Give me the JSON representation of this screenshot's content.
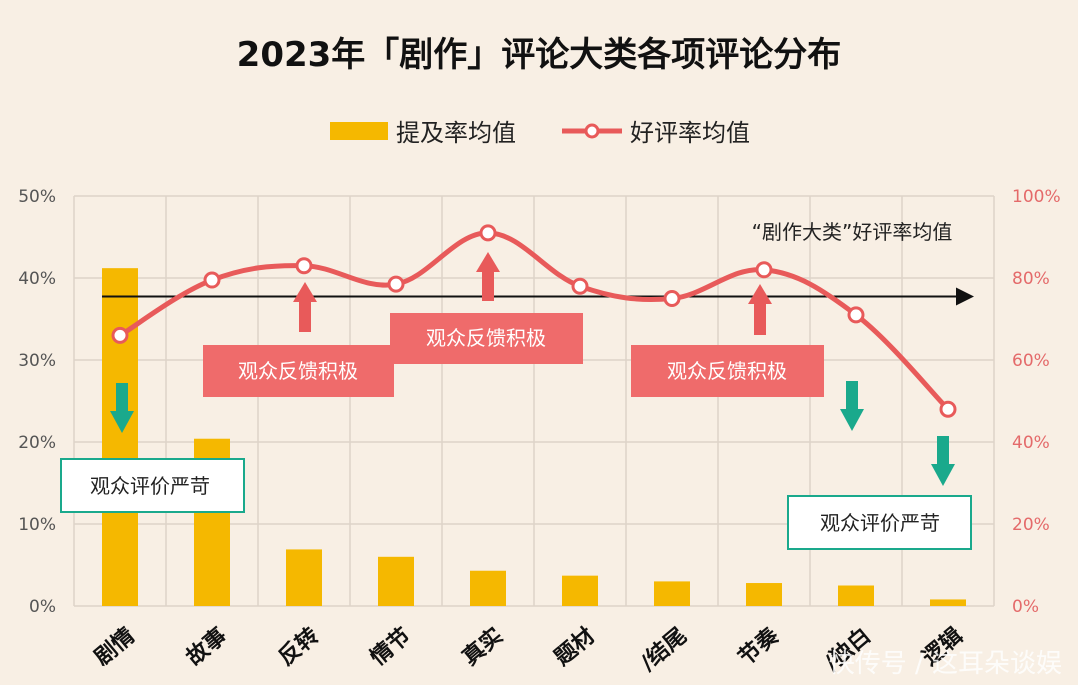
{
  "chart_data": {
    "type": "bar",
    "title": "2023年「剧作」评论大类各项评论分布",
    "categories": [
      "剧情",
      "故事",
      "反转",
      "情节",
      "真实",
      "题材",
      "/结尾",
      "节奏",
      "/独白",
      "逻辑"
    ],
    "series": [
      {
        "name": "提及率均值",
        "type": "bar",
        "axis": "left",
        "color": "#f5b800",
        "values": [
          41.2,
          20.4,
          6.9,
          6.0,
          4.3,
          3.7,
          3.0,
          2.8,
          2.5,
          0.8
        ]
      },
      {
        "name": "好评率均值",
        "type": "line",
        "axis": "right",
        "color": "#e85a5a",
        "values": [
          66,
          79.5,
          83,
          78.5,
          91,
          78,
          75,
          82,
          71,
          48
        ]
      }
    ],
    "y_left": {
      "lim": [
        0,
        50
      ],
      "ticks": [
        "0%",
        "10%",
        "20%",
        "30%",
        "40%",
        "50%"
      ]
    },
    "y_right": {
      "lim": [
        0,
        100
      ],
      "ticks": [
        "0%",
        "20%",
        "40%",
        "60%",
        "80%",
        "100%"
      ]
    },
    "average_line": {
      "value": 75.5,
      "label": "“剧作大类”好评率均值"
    },
    "grid": true,
    "legend": "top-center"
  },
  "callouts": {
    "positive": "观众反馈积极",
    "negative": "观众评价严苛"
  },
  "watermark": "快传号 / 这耳朵谈娱"
}
